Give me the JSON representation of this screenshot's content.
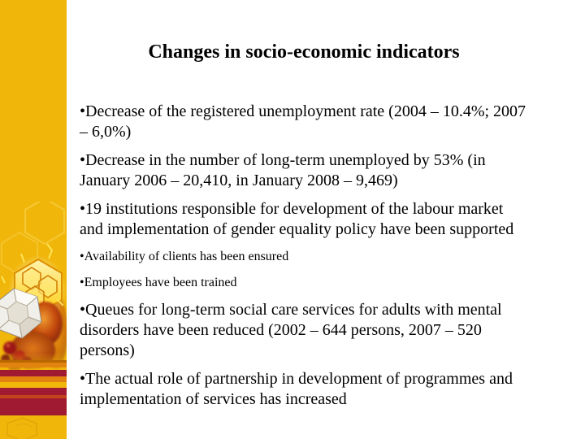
{
  "slide": {
    "title": "Changes in socio-economic indicators",
    "bullet_char": "•",
    "bullets": [
      {
        "text": "Decrease of the registered unemployment rate (2004 – 10.4%; 2007 – 6,0%)",
        "size": "normal"
      },
      {
        "text": "Decrease in the number of long-term unemployed by 53% (in January 2006 – 20,410, in January 2008 – 9,469)",
        "size": "normal"
      },
      {
        "text": "19 institutions responsible for development of the labour market and implementation of gender equality policy have been supported",
        "size": "normal"
      },
      {
        "text": "Availability of clients has been ensured",
        "size": "small"
      },
      {
        "text": "Employees have been trained",
        "size": "small"
      },
      {
        "text": "Queues for long-term social care services for adults with mental disorders have been reduced (2002 – 644 persons, 2007 – 520 persons)",
        "size": "normal"
      },
      {
        "text": "The actual role of partnership in development of programmes and implementation of services has increased",
        "size": "normal"
      }
    ],
    "colors": {
      "background": "#FFFFFF",
      "text": "#000000",
      "gold": "#F1B60A",
      "stripe_maroon": "#A01B31",
      "stripe_orange": "#E2830F",
      "stripe_brown": "#B96700",
      "stripe_red": "#C2441C"
    }
  }
}
